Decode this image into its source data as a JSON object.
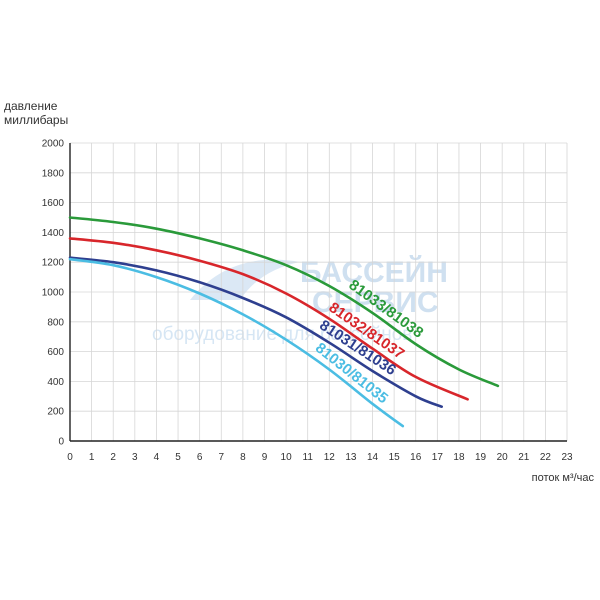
{
  "chart_data": {
    "type": "line",
    "ylabel_lines": [
      "давление",
      "миллибары"
    ],
    "xlabel": "поток м³/час",
    "xlim": [
      0,
      23
    ],
    "ylim": [
      0,
      2000
    ],
    "x_ticks": [
      0,
      1,
      2,
      3,
      4,
      5,
      6,
      7,
      8,
      9,
      10,
      11,
      12,
      13,
      14,
      15,
      16,
      17,
      18,
      19,
      20,
      21,
      22,
      23
    ],
    "y_ticks": [
      0,
      200,
      400,
      600,
      800,
      1000,
      1200,
      1400,
      1600,
      1800,
      2000
    ],
    "grid": true,
    "series": [
      {
        "name": "81033/81038",
        "color": "#2a9a3a",
        "x": [
          0,
          2,
          4,
          6,
          8,
          10,
          12,
          14,
          16,
          18,
          19.8
        ],
        "y": [
          1500,
          1470,
          1425,
          1360,
          1280,
          1180,
          1040,
          860,
          650,
          480,
          370
        ]
      },
      {
        "name": "81032/81037",
        "color": "#d8262b",
        "x": [
          0,
          2,
          4,
          6,
          8,
          10,
          12,
          14,
          16,
          18.4
        ],
        "y": [
          1360,
          1330,
          1280,
          1210,
          1120,
          990,
          820,
          620,
          430,
          280
        ]
      },
      {
        "name": "81031/81036",
        "color": "#2e3f8f",
        "x": [
          0,
          2,
          4,
          6,
          8,
          10,
          12,
          14,
          16,
          17.2
        ],
        "y": [
          1230,
          1200,
          1145,
          1065,
          960,
          830,
          660,
          470,
          300,
          230
        ]
      },
      {
        "name": "81030/81035",
        "color": "#4bbde3",
        "x": [
          0,
          2,
          4,
          6,
          8,
          10,
          12,
          14,
          15.4
        ],
        "y": [
          1220,
          1180,
          1100,
          990,
          850,
          680,
          480,
          250,
          100
        ]
      }
    ]
  },
  "watermark": {
    "line1": "БАССЕЙН",
    "line2": "СЕРВИС",
    "line3": "оборудование для бассейнов"
  }
}
